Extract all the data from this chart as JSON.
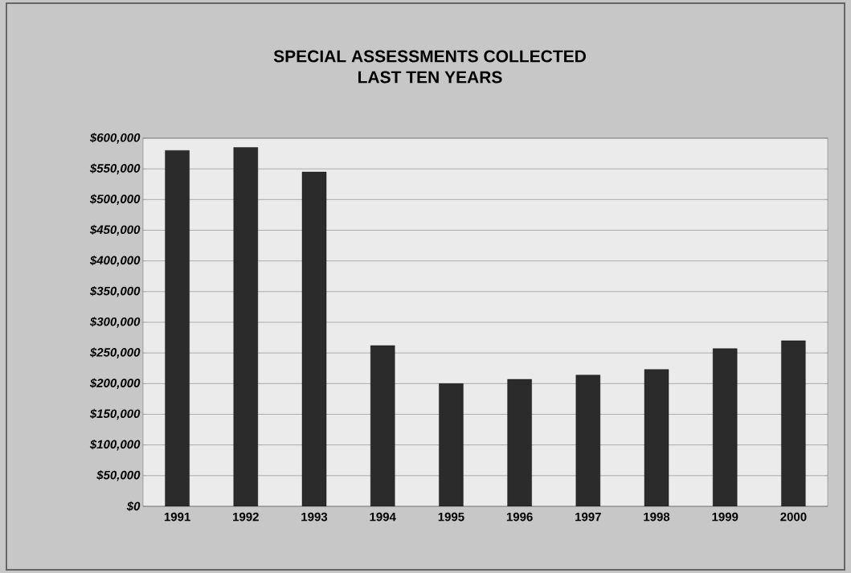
{
  "chart_data": {
    "type": "bar",
    "title": "SPECIAL ASSESSMENTS COLLECTED",
    "subtitle": "LAST TEN YEARS",
    "categories": [
      "1991",
      "1992",
      "1993",
      "1994",
      "1995",
      "1996",
      "1997",
      "1998",
      "1999",
      "2000"
    ],
    "values": [
      580000,
      585000,
      545000,
      262000,
      200000,
      207000,
      214000,
      223000,
      257000,
      270000
    ],
    "color": "#2b2b2b",
    "ylim": [
      0,
      600000
    ],
    "yticks": [
      {
        "value": 0,
        "label": "$0"
      },
      {
        "value": 50000,
        "label": "$50,000"
      },
      {
        "value": 100000,
        "label": "$100,000"
      },
      {
        "value": 150000,
        "label": "$150,000"
      },
      {
        "value": 200000,
        "label": "$200,000"
      },
      {
        "value": 250000,
        "label": "$250,000"
      },
      {
        "value": 300000,
        "label": "$300,000"
      },
      {
        "value": 350000,
        "label": "$350,000"
      },
      {
        "value": 400000,
        "label": "$400,000"
      },
      {
        "value": 450000,
        "label": "$450,000"
      },
      {
        "value": 500000,
        "label": "$500,000"
      },
      {
        "value": 550000,
        "label": "$550,000"
      },
      {
        "value": 600000,
        "label": "$600,000"
      }
    ],
    "grid": "y"
  }
}
